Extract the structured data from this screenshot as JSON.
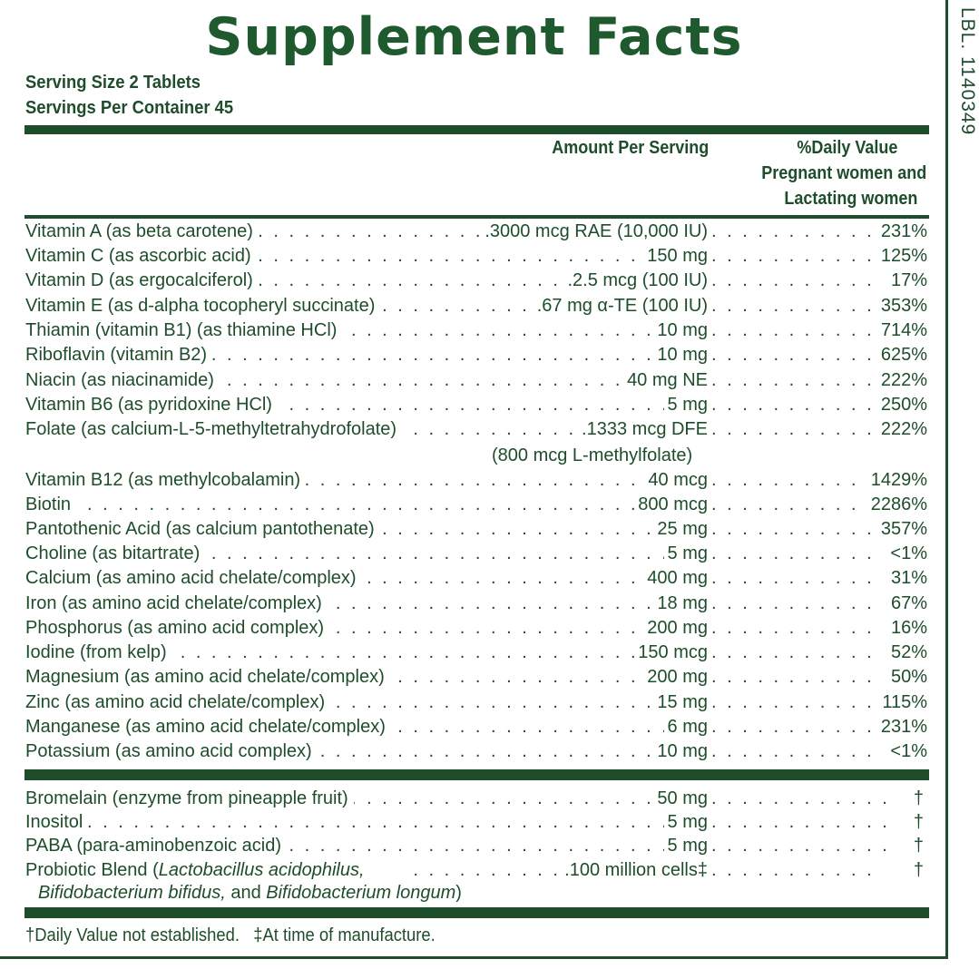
{
  "title": "Supplement Facts",
  "label_code": "LBL. 1140349",
  "serving_size": "Serving Size 2 Tablets",
  "servings_per_container": "Servings Per Container 45",
  "header": {
    "amount": "Amount Per Serving",
    "dv_line1": "%Daily Value",
    "dv_line2": "Pregnant women and",
    "dv_line3": "Lactating women"
  },
  "nutrients": [
    {
      "name": "Vitamin A (as beta carotene)",
      "amount": ".3000 mcg RAE (10,000 IU)",
      "dv": "231%"
    },
    {
      "name": "Vitamin C (as ascorbic acid)",
      "amount": "150 mg",
      "dv": "125%"
    },
    {
      "name": "Vitamin D (as ergocalciferol)",
      "amount": ".2.5 mcg (100 IU)",
      "dv": "17%"
    },
    {
      "name": "Vitamin E (as d-alpha tocopheryl succinate)",
      "amount": ".67 mg α-TE (100 IU)",
      "dv": "353%"
    },
    {
      "name": "Thiamin (vitamin B1) (as thiamine HCl)",
      "amount": "10 mg",
      "dv": "714%"
    },
    {
      "name": "Riboflavin (vitamin B2)",
      "amount": "10 mg",
      "dv": "625%"
    },
    {
      "name": "Niacin (as niacinamide)",
      "amount": "40 mg NE",
      "dv": "222%"
    },
    {
      "name": "Vitamin B6 (as pyridoxine HCl)",
      "amount": "5 mg",
      "dv": "250%"
    },
    {
      "name": "Folate (as calcium-L-5-methyltetrahydrofolate)",
      "amount": ".1333 mcg DFE",
      "dv": "222%"
    },
    {
      "name": "Vitamin B12 (as methylcobalamin)",
      "amount": "40 mcg",
      "dv": "1429%"
    },
    {
      "name": "Biotin",
      "amount": "800 mcg",
      "dv": "2286%"
    },
    {
      "name": "Pantothenic Acid (as calcium pantothenate)",
      "amount": "25 mg",
      "dv": "357%"
    },
    {
      "name": "Choline (as bitartrate)",
      "amount": "5 mg",
      "dv": "<1%"
    },
    {
      "name": "Calcium (as amino acid chelate/complex)",
      "amount": "400 mg",
      "dv": "31%"
    },
    {
      "name": "Iron (as amino acid chelate/complex)",
      "amount": "18 mg",
      "dv": "67%"
    },
    {
      "name": "Phosphorus (as amino acid complex)",
      "amount": "200 mg",
      "dv": "16%"
    },
    {
      "name": "Iodine (from kelp)",
      "amount": "150 mcg",
      "dv": "52%"
    },
    {
      "name": "Magnesium (as amino acid chelate/complex)",
      "amount": "200 mg",
      "dv": "50%"
    },
    {
      "name": "Zinc (as amino acid chelate/complex)",
      "amount": "15 mg",
      "dv": "115%"
    },
    {
      "name": "Manganese (as amino acid chelate/complex)",
      "amount": "6 mg",
      "dv": "231%"
    },
    {
      "name": "Potassium (as amino acid complex)",
      "amount": "10 mg",
      "dv": "<1%"
    }
  ],
  "folate_note": "(800 mcg L-methylfolate)",
  "others": [
    {
      "name": "Bromelain (enzyme from pineapple fruit)",
      "amount": "50 mg",
      "dv": "†"
    },
    {
      "name": "Inositol",
      "amount": "5 mg",
      "dv": "†"
    },
    {
      "name": "PABA (para-aminobenzoic acid)",
      "amount": "5 mg",
      "dv": "†"
    }
  ],
  "probiotic": {
    "name_prefix": "Probiotic Blend (",
    "name_italic1": "Lactobacillus acidophilus,",
    "line2_italic1": "Bifidobacterium bifidus,",
    "line2_and": " and ",
    "line2_italic2": "Bifidobacterium longum",
    "line2_close": ")",
    "amount": ".100 million cells‡",
    "dv": "†"
  },
  "footnote": "†Daily Value not established.   ‡At time of manufacture.",
  "colors": {
    "green": "#1e4d2b",
    "title_green": "#1e5a2e"
  }
}
